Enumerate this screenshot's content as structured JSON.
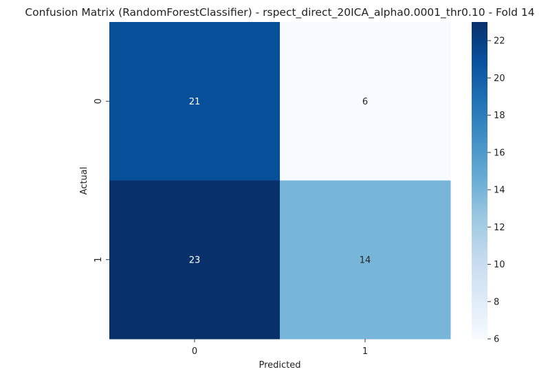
{
  "chart_data": {
    "type": "heatmap",
    "title": "Confusion Matrix (RandomForestClassifier) - rspect_direct_20ICA_alpha0.0001_thr0.10 - Fold 14",
    "xlabel": "Predicted",
    "ylabel": "Actual",
    "x_categories": [
      "0",
      "1"
    ],
    "y_categories": [
      "0",
      "1"
    ],
    "values": [
      [
        21,
        6
      ],
      [
        23,
        14
      ]
    ],
    "colormap": "Blues",
    "vmin": 6,
    "vmax": 23,
    "colorbar": {
      "ticks": [
        6,
        8,
        10,
        12,
        14,
        16,
        18,
        20,
        22
      ],
      "tick_labels": [
        "6",
        "8",
        "10",
        "12",
        "14",
        "16",
        "18",
        "20",
        "22"
      ]
    },
    "grid": false,
    "legend": "colorbar-right"
  }
}
